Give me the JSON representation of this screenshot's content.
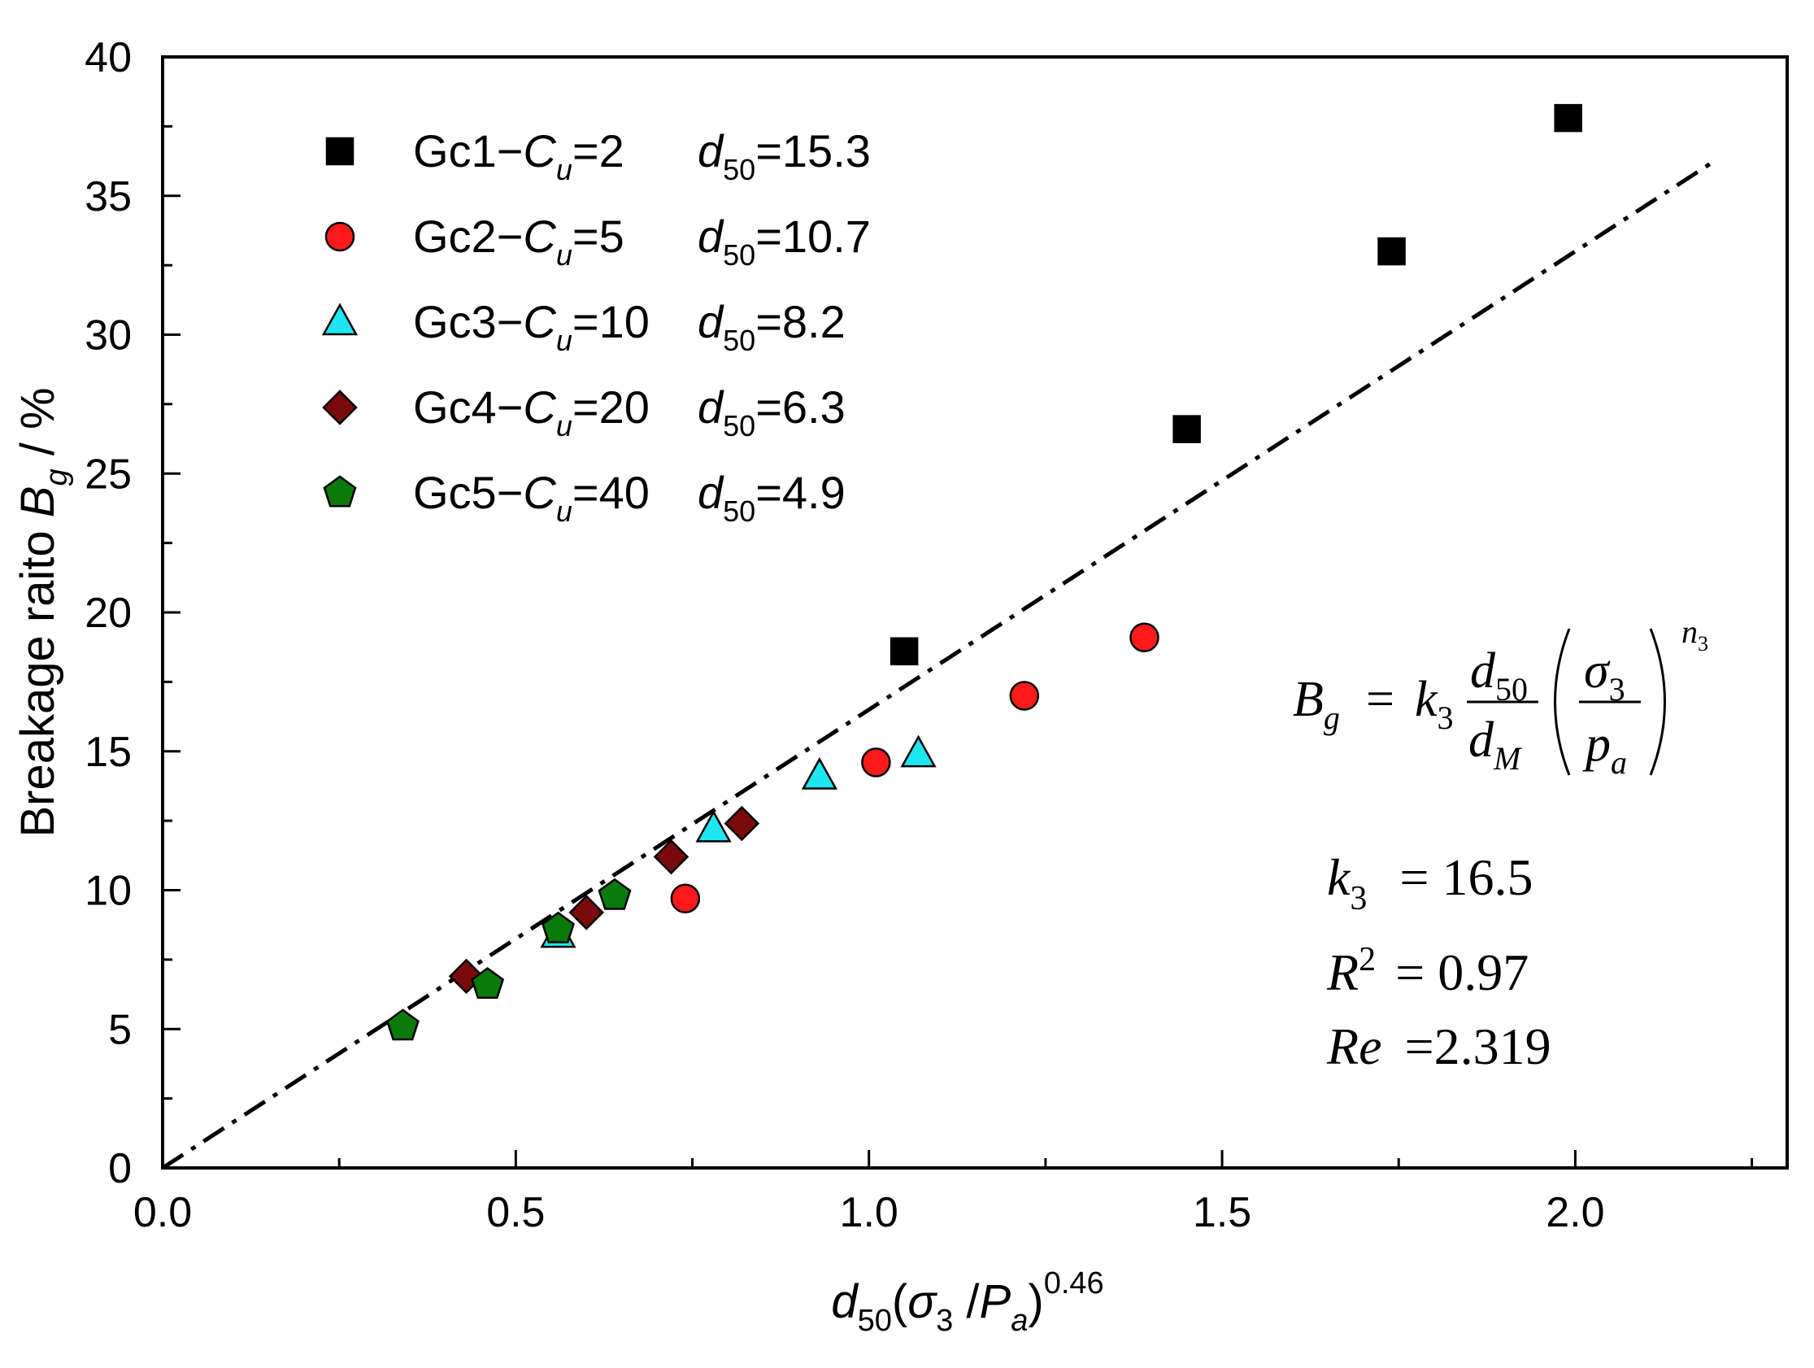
{
  "chart_data": {
    "type": "scatter",
    "x_axis": {
      "range": [
        0,
        2.3
      ],
      "ticks": [
        0.0,
        0.5,
        1.0,
        1.5,
        2.0
      ],
      "tick_labels": [
        "0.0",
        "0.5",
        "1.0",
        "1.5",
        "2.0"
      ],
      "minor_ticks": [
        0.25,
        0.75,
        1.25,
        1.75,
        2.25
      ],
      "label": {
        "d": "d",
        "d_sub": "50",
        "open": "(",
        "sigma": "σ",
        "sigma_sub": "3",
        "slash": " /",
        "p": "P",
        "p_sub": "a",
        "close": ")",
        "exp": "0.46"
      }
    },
    "y_axis": {
      "range": [
        0,
        40
      ],
      "ticks": [
        0,
        5,
        10,
        15,
        20,
        25,
        30,
        35,
        40
      ],
      "tick_labels": [
        "0",
        "5",
        "10",
        "15",
        "20",
        "25",
        "30",
        "35",
        "40"
      ],
      "minor_ticks": [
        2.5,
        7.5,
        12.5,
        17.5,
        22.5,
        27.5,
        32.5,
        37.5
      ],
      "label": {
        "main": "Breakage raito ",
        "b": "B",
        "b_sub": "g",
        "tail": " / %"
      }
    },
    "series": [
      {
        "name": "Gc1",
        "label": {
          "prefix": "Gc1−",
          "c": "C",
          "c_sub": "u",
          "cu_val": "=2",
          "d": "d",
          "d_sub": "50",
          "d_val": "=15.3"
        },
        "marker": "square",
        "color": "#000000",
        "points": [
          [
            1.05,
            18.6
          ],
          [
            1.45,
            26.6
          ],
          [
            1.74,
            33.0
          ],
          [
            1.99,
            37.8
          ]
        ]
      },
      {
        "name": "Gc2",
        "label": {
          "prefix": "Gc2−",
          "c": "C",
          "c_sub": "u",
          "cu_val": "=5",
          "d": "d",
          "d_sub": "50",
          "d_val": "=10.7"
        },
        "marker": "circle",
        "color": "#ff1a1a",
        "points": [
          [
            0.74,
            9.7
          ],
          [
            1.01,
            14.6
          ],
          [
            1.22,
            17.0
          ],
          [
            1.39,
            19.1
          ]
        ]
      },
      {
        "name": "Gc3",
        "label": {
          "prefix": "Gc3−",
          "c": "C",
          "c_sub": "u",
          "cu_val": "=10",
          "d": "d",
          "d_sub": "50",
          "d_val": "=8.2"
        },
        "marker": "triangle",
        "color": "#1ee6f0",
        "points": [
          [
            0.56,
            8.4
          ],
          [
            0.78,
            12.2
          ],
          [
            0.93,
            14.1
          ],
          [
            1.07,
            14.9
          ]
        ]
      },
      {
        "name": "Gc4",
        "label": {
          "prefix": "Gc4−",
          "c": "C",
          "c_sub": "u",
          "cu_val": "=20",
          "d": "d",
          "d_sub": "50",
          "d_val": "=6.3"
        },
        "marker": "diamond",
        "color": "#7a0a0a",
        "points": [
          [
            0.43,
            6.9
          ],
          [
            0.6,
            9.2
          ],
          [
            0.72,
            11.2
          ],
          [
            0.82,
            12.4
          ]
        ]
      },
      {
        "name": "Gc5",
        "label": {
          "prefix": "Gc5−",
          "c": "C",
          "c_sub": "u",
          "cu_val": "=40",
          "d": "d",
          "d_sub": "50",
          "d_val": "=4.9"
        },
        "marker": "pentagon",
        "color": "#0a7a0a",
        "points": [
          [
            0.34,
            5.1
          ],
          [
            0.46,
            6.6
          ],
          [
            0.56,
            8.6
          ],
          [
            0.64,
            9.8
          ]
        ]
      }
    ],
    "fit_line": {
      "slope": 16.5,
      "x_range": [
        0,
        2.2
      ],
      "style": "dash-dot",
      "color": "#000000"
    },
    "legend": {
      "placement": "top-left"
    },
    "annotation": {
      "formula": {
        "B": "B",
        "g": "g",
        "eq": "=",
        "k": "k",
        "k_sub": "3",
        "num": "d",
        "num_sub": "50",
        "den": "d",
        "den_sub": "M",
        "sigma": "σ",
        "sigma_sub": "3",
        "p": "p",
        "p_sub": "a",
        "n": "n",
        "n_sub": "3"
      },
      "k3": {
        "name": "k",
        "sub": "3",
        "value": "= 16.5"
      },
      "r2": {
        "name": "R",
        "sup": "2",
        "value": "= 0.97"
      },
      "re": {
        "name": "Re",
        "value": "=2.319"
      }
    },
    "grid": false
  }
}
